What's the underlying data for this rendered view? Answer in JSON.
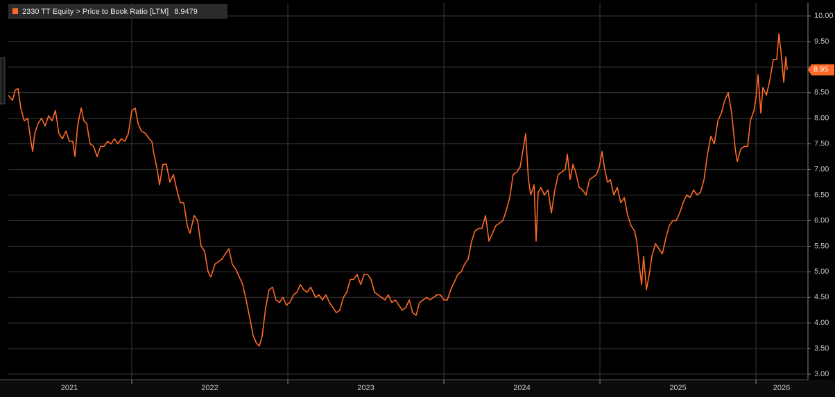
{
  "chart_data": {
    "type": "line",
    "series": [
      {
        "name": "2330 TT Equity > Price to Book Ratio [LTM]",
        "color": "#ff6a26",
        "values": [
          8.45,
          8.35,
          8.55,
          8.58,
          8.2,
          7.95,
          8.0,
          7.6,
          7.35,
          7.7,
          7.9,
          8.0,
          7.85,
          8.05,
          7.95,
          8.15,
          7.7,
          7.6,
          7.75,
          7.55,
          7.55,
          7.25,
          7.85,
          8.2,
          7.95,
          7.9,
          7.5,
          7.45,
          7.25,
          7.45,
          7.45,
          7.55,
          7.5,
          7.6,
          7.5,
          7.6,
          7.55,
          7.7,
          8.15,
          8.2,
          7.9,
          7.75,
          7.7,
          7.6,
          7.55,
          7.3,
          7.05,
          6.7,
          7.1,
          7.1,
          6.75,
          6.9,
          6.6,
          6.35,
          6.35,
          5.9,
          5.75,
          6.1,
          6.0,
          5.5,
          5.4,
          5.0,
          4.9,
          5.15,
          5.2,
          5.25,
          5.35,
          5.45,
          5.15,
          5.05,
          4.9,
          4.75,
          4.45,
          4.1,
          3.75,
          3.6,
          3.55,
          3.75,
          4.3,
          4.65,
          4.7,
          4.45,
          4.4,
          4.5,
          4.35,
          4.4,
          4.55,
          4.6,
          4.75,
          4.65,
          4.6,
          4.7,
          4.5,
          4.55,
          4.45,
          4.55,
          4.4,
          4.3,
          4.2,
          4.25,
          4.5,
          4.6,
          4.85,
          4.85,
          4.95,
          4.75,
          4.95,
          4.95,
          4.85,
          4.6,
          4.55,
          4.5,
          4.45,
          4.55,
          4.4,
          4.45,
          4.35,
          4.25,
          4.3,
          4.45,
          4.2,
          4.15,
          4.4,
          4.45,
          4.5,
          4.45,
          4.5,
          4.55,
          4.55,
          4.45,
          4.45,
          4.65,
          4.8,
          4.95,
          5.0,
          5.15,
          5.25,
          5.6,
          5.8,
          5.85,
          5.85,
          6.1,
          5.6,
          5.75,
          5.9,
          5.95,
          6.0,
          6.2,
          6.45,
          6.9,
          6.95,
          7.05,
          7.45,
          7.7,
          6.8,
          6.5,
          6.7,
          5.6,
          6.55,
          6.65,
          6.5,
          6.6,
          6.15,
          6.6,
          6.9,
          6.95,
          7.0,
          7.3,
          6.8,
          7.1,
          6.95,
          6.65,
          6.6,
          6.5,
          6.8,
          6.85,
          6.9,
          7.05,
          7.35,
          7.0,
          6.75,
          6.8,
          6.5,
          6.65,
          6.35,
          6.45,
          6.1,
          5.9,
          5.8,
          5.6,
          5.1,
          4.75,
          5.3,
          4.65,
          4.95,
          5.3,
          5.55,
          5.45,
          5.35,
          5.65,
          5.9,
          6.0,
          6.0,
          6.15,
          6.35,
          6.5,
          6.45,
          6.6,
          6.5,
          6.55,
          6.8,
          7.3,
          7.65,
          7.5,
          7.95,
          8.1,
          8.35,
          8.5,
          8.1,
          7.4,
          7.15,
          7.4,
          7.45,
          7.45,
          7.95,
          8.15,
          8.4,
          8.85,
          8.1,
          8.6,
          8.45,
          8.75,
          9.15,
          9.15,
          9.65,
          9.3,
          8.7,
          9.2,
          8.9479
        ]
      }
    ],
    "x": [
      2021.209,
      2021.236,
      2021.253,
      2021.271,
      2021.289,
      2021.311,
      2021.333,
      2021.351,
      2021.365,
      2021.378,
      2021.4,
      2021.422,
      2021.445,
      2021.467,
      2021.489,
      2021.511,
      2021.533,
      2021.556,
      2021.578,
      2021.6,
      2021.622,
      2021.636,
      2021.653,
      2021.676,
      2021.693,
      2021.711,
      2021.733,
      2021.756,
      2021.778,
      2021.8,
      2021.822,
      2021.845,
      2021.867,
      2021.889,
      2021.911,
      2021.933,
      2021.956,
      2021.978,
      2022.0,
      2022.022,
      2022.04,
      2022.062,
      2022.089,
      2022.111,
      2022.129,
      2022.142,
      2022.16,
      2022.178,
      2022.2,
      2022.222,
      2022.244,
      2022.267,
      2022.289,
      2022.311,
      2022.333,
      2022.356,
      2022.373,
      2022.4,
      2022.422,
      2022.444,
      2022.467,
      2022.489,
      2022.507,
      2022.533,
      2022.556,
      2022.578,
      2022.6,
      2022.622,
      2022.644,
      2022.667,
      2022.689,
      2022.711,
      2022.733,
      2022.756,
      2022.778,
      2022.8,
      2022.818,
      2022.836,
      2022.858,
      2022.88,
      2022.902,
      2022.924,
      2022.947,
      2022.969,
      2022.991,
      2023.013,
      2023.036,
      2023.058,
      2023.08,
      2023.102,
      2023.124,
      2023.147,
      2023.178,
      2023.2,
      2023.222,
      2023.244,
      2023.267,
      2023.289,
      2023.311,
      2023.333,
      2023.356,
      2023.378,
      2023.4,
      2023.422,
      2023.444,
      2023.467,
      2023.489,
      2023.511,
      2023.533,
      2023.556,
      2023.578,
      2023.6,
      2023.622,
      2023.644,
      2023.667,
      2023.689,
      2023.711,
      2023.733,
      2023.756,
      2023.778,
      2023.8,
      2023.822,
      2023.844,
      2023.867,
      2023.889,
      2023.911,
      2023.933,
      2023.956,
      2023.978,
      2024.0,
      2024.022,
      2024.044,
      2024.067,
      2024.089,
      2024.111,
      2024.133,
      2024.156,
      2024.178,
      2024.2,
      2024.222,
      2024.244,
      2024.267,
      2024.289,
      2024.311,
      2024.333,
      2024.356,
      2024.378,
      2024.4,
      2024.422,
      2024.444,
      2024.467,
      2024.489,
      2024.511,
      2024.524,
      2024.542,
      2024.556,
      2024.578,
      2024.591,
      2024.604,
      2024.622,
      2024.644,
      2024.667,
      2024.689,
      2024.711,
      2024.733,
      2024.756,
      2024.778,
      2024.791,
      2024.809,
      2024.827,
      2024.844,
      2024.867,
      2024.889,
      2024.911,
      2024.933,
      2024.956,
      2024.978,
      2024.996,
      2025.013,
      2025.031,
      2025.049,
      2025.067,
      2025.089,
      2025.111,
      2025.133,
      2025.156,
      2025.178,
      2025.2,
      2025.222,
      2025.236,
      2025.253,
      2025.267,
      2025.28,
      2025.298,
      2025.316,
      2025.333,
      2025.356,
      2025.378,
      2025.4,
      2025.422,
      2025.444,
      2025.467,
      2025.489,
      2025.511,
      2025.533,
      2025.556,
      2025.578,
      2025.6,
      2025.622,
      2025.644,
      2025.667,
      2025.689,
      2025.711,
      2025.733,
      2025.756,
      2025.778,
      2025.8,
      2025.822,
      2025.844,
      2025.867,
      2025.88,
      2025.902,
      2025.924,
      2025.947,
      2025.964,
      2025.987,
      2026.0,
      2026.013,
      2026.031,
      2026.044,
      2026.067,
      2026.089,
      2026.111,
      2026.133,
      2026.147,
      2026.16,
      2026.178,
      2026.191,
      2026.2
    ],
    "xlim": [
      2021.209,
      2026.333
    ],
    "xticks": [
      {
        "value": 2021.6,
        "label": "2021"
      },
      {
        "value": 2022.5,
        "label": "2022"
      },
      {
        "value": 2023.5,
        "label": "2023"
      },
      {
        "value": 2024.5,
        "label": "2024"
      },
      {
        "value": 2025.5,
        "label": "2025"
      },
      {
        "value": 2026.164,
        "label": "2026"
      }
    ],
    "year_separators": [
      2022,
      2023,
      2024,
      2025,
      2026
    ],
    "ylim": [
      2.892,
      10.257
    ],
    "yticks": [
      {
        "value": 10,
        "label": "10.00"
      },
      {
        "value": 9.5,
        "label": "9.50"
      },
      {
        "value": 9,
        "label": "9.00"
      },
      {
        "value": 8.5,
        "label": "8.50"
      },
      {
        "value": 8,
        "label": "8.00"
      },
      {
        "value": 7.5,
        "label": "7.50"
      },
      {
        "value": 7,
        "label": "7.00"
      },
      {
        "value": 6.5,
        "label": "6.50"
      },
      {
        "value": 6,
        "label": "6.00"
      },
      {
        "value": 5.5,
        "label": "5.50"
      },
      {
        "value": 5,
        "label": "5.00"
      },
      {
        "value": 4.5,
        "label": "4.50"
      },
      {
        "value": 4,
        "label": "4.00"
      },
      {
        "value": 3.5,
        "label": "3.50"
      },
      {
        "value": 3,
        "label": "3.00"
      }
    ],
    "last_value_label": "8.95",
    "grid": true
  }
}
